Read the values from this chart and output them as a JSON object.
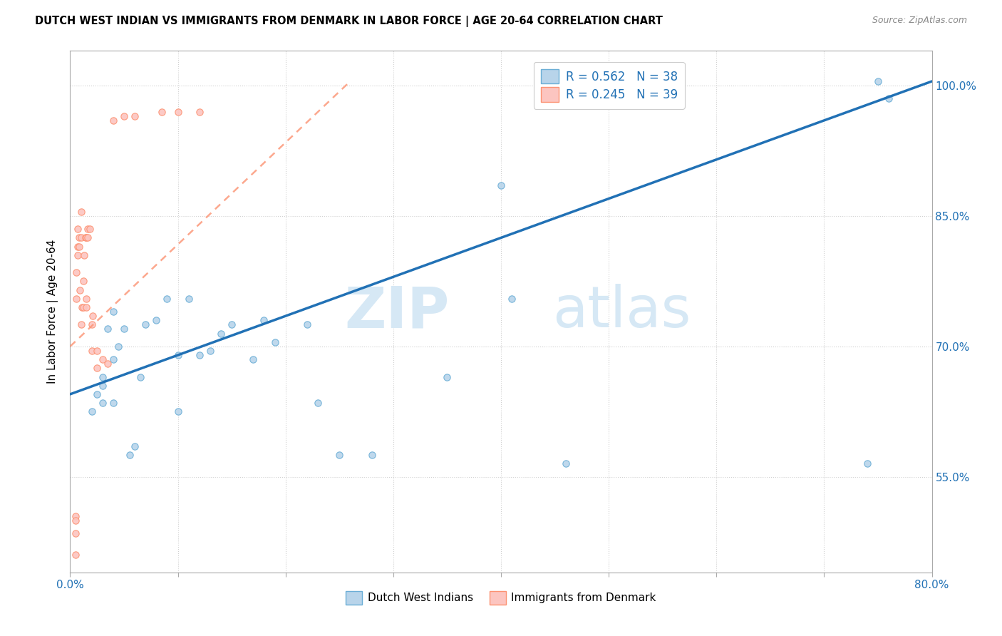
{
  "title": "DUTCH WEST INDIAN VS IMMIGRANTS FROM DENMARK IN LABOR FORCE | AGE 20-64 CORRELATION CHART",
  "source": "Source: ZipAtlas.com",
  "ylabel": "In Labor Force | Age 20-64",
  "xlim": [
    0.0,
    0.8
  ],
  "ylim": [
    0.44,
    1.04
  ],
  "ytick_positions": [
    0.55,
    0.7,
    0.85,
    1.0
  ],
  "ytick_labels": [
    "55.0%",
    "70.0%",
    "85.0%",
    "100.0%"
  ],
  "xtick_positions": [
    0.0,
    0.1,
    0.2,
    0.3,
    0.4,
    0.5,
    0.6,
    0.7,
    0.8
  ],
  "xtick_labels": [
    "0.0%",
    "",
    "",
    "",
    "",
    "",
    "",
    "",
    "80.0%"
  ],
  "legend_label1": "R = 0.562   N = 38",
  "legend_label2": "R = 0.245   N = 39",
  "bottom_label1": "Dutch West Indians",
  "bottom_label2": "Immigrants from Denmark",
  "blue_scatter_color": "#b8d4ea",
  "blue_scatter_edge": "#6baed6",
  "pink_scatter_color": "#fcc5c0",
  "pink_scatter_edge": "#fc9272",
  "blue_line_color": "#2171b5",
  "pink_line_color": "#fc9272",
  "tick_color": "#2171b5",
  "grid_color": "#d0d0d0",
  "watermark_color": "#d6e8f5",
  "blue_scatter_x": [
    0.02,
    0.025,
    0.03,
    0.03,
    0.03,
    0.035,
    0.04,
    0.04,
    0.04,
    0.045,
    0.05,
    0.055,
    0.06,
    0.065,
    0.07,
    0.08,
    0.09,
    0.1,
    0.1,
    0.11,
    0.12,
    0.13,
    0.14,
    0.15,
    0.17,
    0.18,
    0.19,
    0.22,
    0.23,
    0.25,
    0.28,
    0.35,
    0.4,
    0.41,
    0.46,
    0.74,
    0.75,
    0.76
  ],
  "blue_scatter_y": [
    0.625,
    0.645,
    0.635,
    0.655,
    0.665,
    0.72,
    0.74,
    0.635,
    0.685,
    0.7,
    0.72,
    0.575,
    0.585,
    0.665,
    0.725,
    0.73,
    0.755,
    0.625,
    0.69,
    0.755,
    0.69,
    0.695,
    0.715,
    0.725,
    0.685,
    0.73,
    0.705,
    0.725,
    0.635,
    0.575,
    0.575,
    0.665,
    0.885,
    0.755,
    0.565,
    0.565,
    1.005,
    0.985
  ],
  "pink_scatter_x": [
    0.005,
    0.005,
    0.006,
    0.006,
    0.007,
    0.007,
    0.007,
    0.008,
    0.008,
    0.009,
    0.01,
    0.01,
    0.01,
    0.011,
    0.012,
    0.012,
    0.013,
    0.014,
    0.015,
    0.015,
    0.015,
    0.016,
    0.016,
    0.018,
    0.02,
    0.02,
    0.021,
    0.025,
    0.025,
    0.03,
    0.035,
    0.04,
    0.05,
    0.06,
    0.085,
    0.1,
    0.12,
    0.005,
    0.005
  ],
  "pink_scatter_y": [
    0.485,
    0.505,
    0.755,
    0.785,
    0.805,
    0.815,
    0.835,
    0.815,
    0.825,
    0.765,
    0.825,
    0.855,
    0.725,
    0.745,
    0.745,
    0.775,
    0.805,
    0.825,
    0.745,
    0.755,
    0.825,
    0.835,
    0.825,
    0.835,
    0.695,
    0.725,
    0.735,
    0.675,
    0.695,
    0.685,
    0.68,
    0.96,
    0.965,
    0.965,
    0.97,
    0.97,
    0.97,
    0.46,
    0.5
  ],
  "blue_line_x": [
    0.0,
    0.8
  ],
  "blue_line_y": [
    0.645,
    1.005
  ],
  "pink_line_x": [
    0.0,
    0.26
  ],
  "pink_line_y": [
    0.7,
    1.005
  ]
}
